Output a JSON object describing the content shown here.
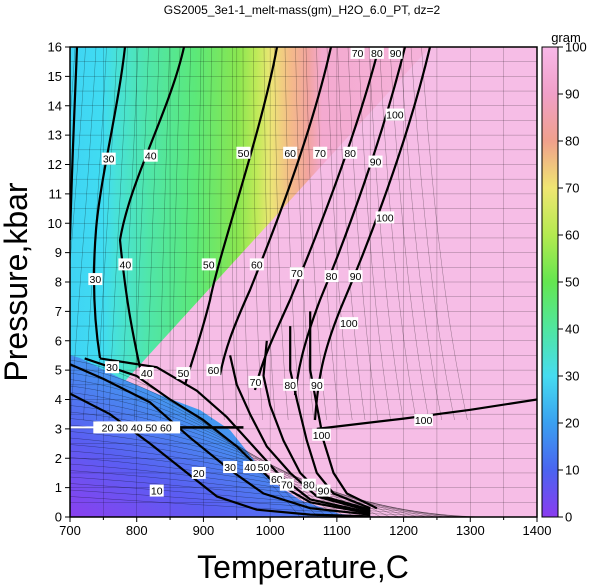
{
  "chart_data": {
    "type": "heatmap",
    "title": "GS2005_3e1-1_melt-mass(gm)_H2O_6.0_PT, dz=2",
    "xlabel": "Temperature,C",
    "ylabel": "Pressure,kbar",
    "xlim": [
      700,
      1400
    ],
    "ylim": [
      0,
      16
    ],
    "x_ticks": [
      "700",
      "800",
      "900",
      "1000",
      "1100",
      "1200",
      "1300",
      "1400"
    ],
    "y_ticks": [
      "0",
      "1",
      "2",
      "3",
      "4",
      "5",
      "6",
      "7",
      "8",
      "9",
      "10",
      "11",
      "12",
      "13",
      "14",
      "15",
      "16"
    ],
    "grid": true,
    "colorbar": {
      "label": "gram",
      "range": [
        0,
        100
      ],
      "ticks": [
        "0",
        "10",
        "20",
        "30",
        "40",
        "50",
        "60",
        "70",
        "80",
        "90",
        "100"
      ],
      "colors": [
        "#8a3cf0",
        "#4a64f0",
        "#3aa0f0",
        "#46dcf0",
        "#50e6a0",
        "#64e650",
        "#b4ea50",
        "#f0e672",
        "#f0a08c",
        "#f0a0c8",
        "#f8b8e8"
      ]
    },
    "major_contours": [
      {
        "level": 20,
        "points": [
          [
            700,
            4.2
          ],
          [
            760,
            3.5
          ],
          [
            820,
            2.5
          ],
          [
            870,
            1.6
          ],
          [
            920,
            0.7
          ],
          [
            980,
            0.25
          ],
          [
            1060,
            0.08
          ],
          [
            1150,
            0.02
          ]
        ]
      },
      {
        "level": 30,
        "points": [
          [
            700,
            5.2
          ],
          [
            750,
            4.7
          ],
          [
            820,
            3.9
          ],
          [
            880,
            2.7
          ],
          [
            940,
            1.6
          ],
          [
            990,
            0.8
          ],
          [
            1060,
            0.3
          ],
          [
            1150,
            0.08
          ]
        ]
      },
      {
        "level": 40,
        "points": [
          [
            722,
            5.4
          ],
          [
            800,
            4.8
          ],
          [
            850,
            4.0
          ],
          [
            900,
            3.3
          ],
          [
            950,
            2.4
          ],
          [
            1000,
            1.3
          ],
          [
            1060,
            0.5
          ],
          [
            1150,
            0.12
          ]
        ]
      },
      {
        "level": 50,
        "points": [
          [
            745,
            5.4
          ],
          [
            830,
            5.1
          ],
          [
            890,
            4.3
          ],
          [
            935,
            3.4
          ],
          [
            975,
            2.4
          ],
          [
            1015,
            1.4
          ],
          [
            1060,
            0.6
          ],
          [
            1150,
            0.15
          ]
        ]
      },
      {
        "level": 60,
        "points": [
          [
            940,
            5.5
          ],
          [
            950,
            4.5
          ],
          [
            970,
            3.5
          ],
          [
            995,
            2.4
          ],
          [
            1030,
            1.5
          ],
          [
            1070,
            0.7
          ],
          [
            1150,
            0.2
          ]
        ]
      },
      {
        "level": 70,
        "points": [
          [
            995,
            6.0
          ],
          [
            990,
            4.8
          ],
          [
            1000,
            3.8
          ],
          [
            1020,
            2.6
          ],
          [
            1045,
            1.5
          ],
          [
            1080,
            0.7
          ],
          [
            1150,
            0.25
          ]
        ]
      },
      {
        "level": 80,
        "points": [
          [
            1030,
            6.5
          ],
          [
            1030,
            5.0
          ],
          [
            1040,
            4.0
          ],
          [
            1055,
            2.6
          ],
          [
            1070,
            1.5
          ],
          [
            1095,
            0.8
          ],
          [
            1150,
            0.3
          ]
        ]
      },
      {
        "level": 90,
        "points": [
          [
            1060,
            7.0
          ],
          [
            1060,
            5.0
          ],
          [
            1070,
            3.8
          ],
          [
            1080,
            2.6
          ],
          [
            1095,
            1.5
          ],
          [
            1115,
            0.8
          ],
          [
            1160,
            0.3
          ]
        ]
      },
      {
        "level": 100,
        "points": [
          [
            1070,
            3.0
          ],
          [
            1200,
            3.35
          ],
          [
            1300,
            3.65
          ],
          [
            1400,
            4.0
          ]
        ]
      }
    ],
    "annotations": [
      {
        "text": "30",
        "x": 758,
        "y": 12.2
      },
      {
        "text": "40",
        "x": 821,
        "y": 12.3
      },
      {
        "text": "50",
        "x": 960,
        "y": 12.4
      },
      {
        "text": "60",
        "x": 1030,
        "y": 12.4
      },
      {
        "text": "70",
        "x": 1075,
        "y": 12.4
      },
      {
        "text": "80",
        "x": 1120,
        "y": 12.4
      },
      {
        "text": "90",
        "x": 1158,
        "y": 12.1
      },
      {
        "text": "70",
        "x": 1131,
        "y": 15.8
      },
      {
        "text": "80",
        "x": 1160,
        "y": 15.8
      },
      {
        "text": "90",
        "x": 1188,
        "y": 15.8
      },
      {
        "text": "100",
        "x": 1187,
        "y": 13.7
      },
      {
        "text": "100",
        "x": 1172,
        "y": 10.2
      },
      {
        "text": "30",
        "x": 738,
        "y": 8.1
      },
      {
        "text": "40",
        "x": 783,
        "y": 8.6
      },
      {
        "text": "50",
        "x": 908,
        "y": 8.6
      },
      {
        "text": "60",
        "x": 980,
        "y": 8.6
      },
      {
        "text": "70",
        "x": 1040,
        "y": 8.3
      },
      {
        "text": "80",
        "x": 1092,
        "y": 8.2
      },
      {
        "text": "90",
        "x": 1128,
        "y": 8.2
      },
      {
        "text": "100",
        "x": 1118,
        "y": 6.6
      },
      {
        "text": "30",
        "x": 763,
        "y": 5.1
      },
      {
        "text": "40",
        "x": 815,
        "y": 4.9
      },
      {
        "text": "50",
        "x": 870,
        "y": 4.9
      },
      {
        "text": "60",
        "x": 915,
        "y": 5.0
      },
      {
        "text": "70",
        "x": 978,
        "y": 4.6
      },
      {
        "text": "80",
        "x": 1030,
        "y": 4.5
      },
      {
        "text": "90",
        "x": 1070,
        "y": 4.5
      },
      {
        "text": "100",
        "x": 1077,
        "y": 2.8
      },
      {
        "text": "100",
        "x": 1230,
        "y": 3.3
      },
      {
        "text": "20 30 40 50 60",
        "x": 800,
        "y": 3.05
      },
      {
        "text": "30",
        "x": 940,
        "y": 1.7
      },
      {
        "text": "20",
        "x": 893,
        "y": 1.5
      },
      {
        "text": "40",
        "x": 970,
        "y": 1.7
      },
      {
        "text": "50",
        "x": 990,
        "y": 1.7
      },
      {
        "text": "60",
        "x": 1010,
        "y": 1.3
      },
      {
        "text": "70",
        "x": 1025,
        "y": 1.1
      },
      {
        "text": "80",
        "x": 1058,
        "y": 1.1
      },
      {
        "text": "90",
        "x": 1080,
        "y": 0.9
      },
      {
        "text": "10",
        "x": 830,
        "y": 0.9
      }
    ]
  }
}
